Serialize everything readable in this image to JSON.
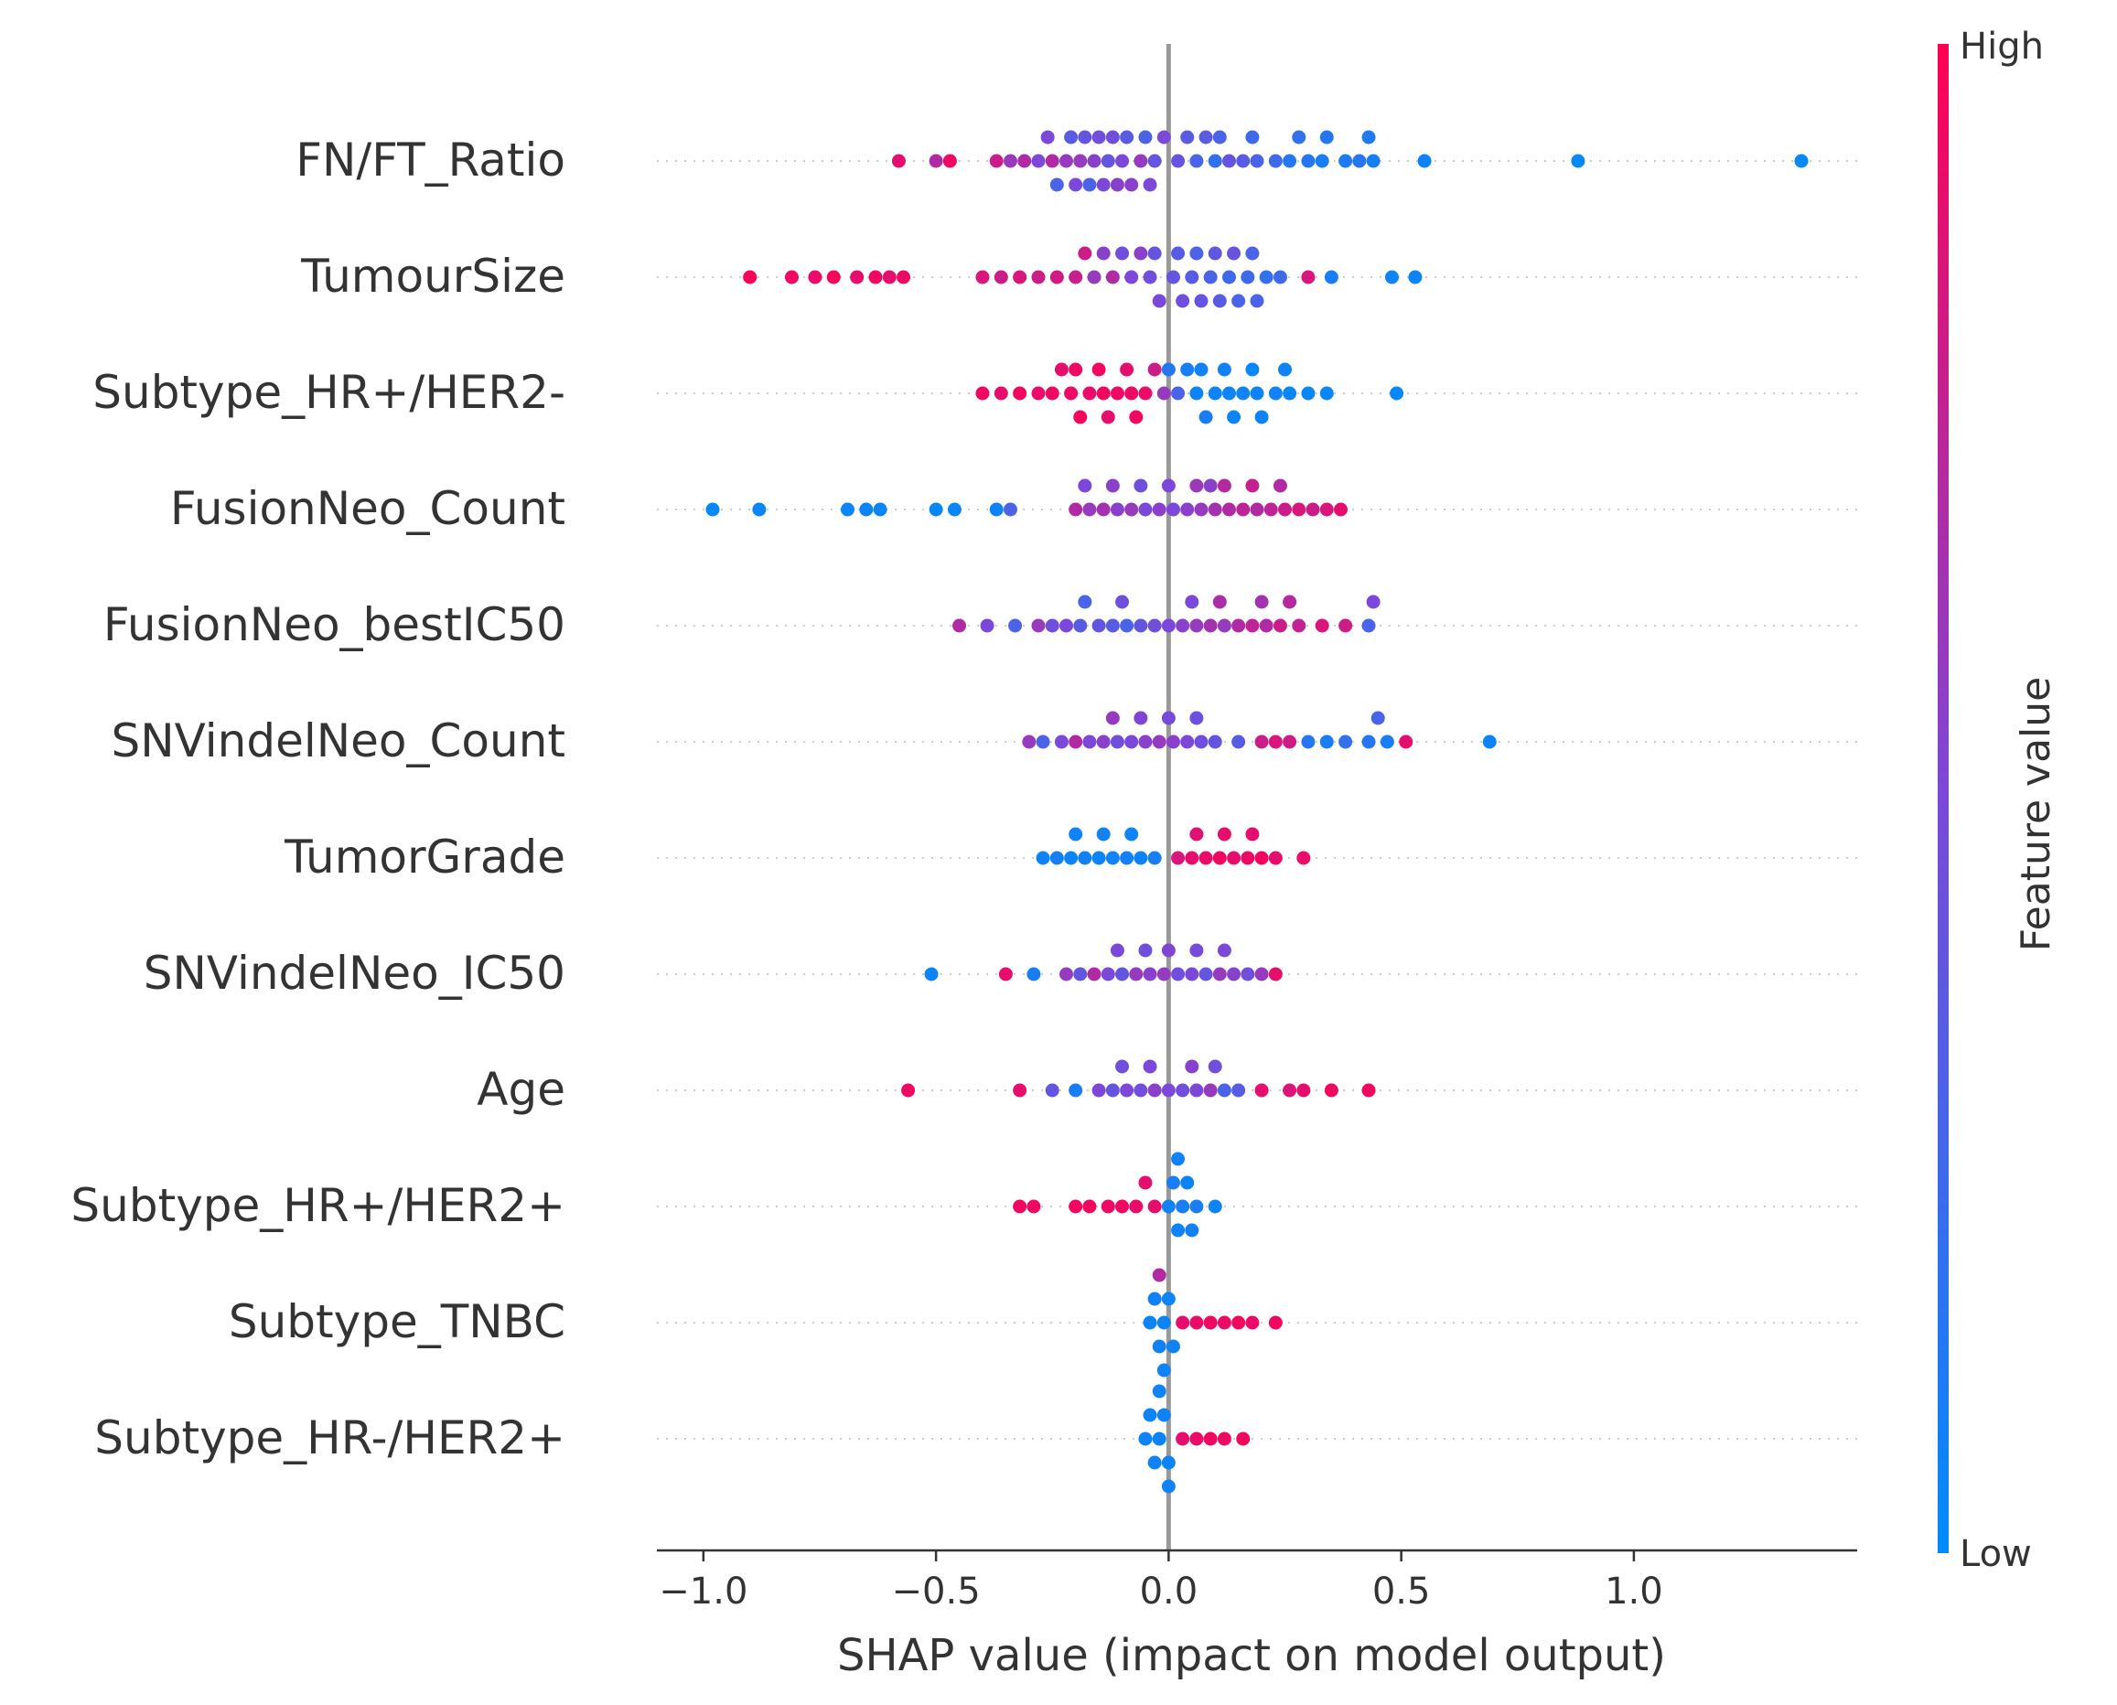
{
  "chart_data": {
    "type": "scatter",
    "subtype": "shap-beeswarm",
    "title": "",
    "xlabel": "SHAP value (impact on model output)",
    "ylabel": "",
    "xlim": [
      -1.1,
      1.48
    ],
    "xticks": [
      -1.0,
      -0.5,
      0.0,
      0.5,
      1.0
    ],
    "xtick_labels": [
      "−1.0",
      "−0.5",
      "0.0",
      "0.5",
      "1.0"
    ],
    "grid": false,
    "zero_line": true,
    "features": [
      "FN/FT_Ratio",
      "TumourSize",
      "Subtype_HR+/HER2-",
      "FusionNeo_Count",
      "FusionNeo_bestIC50",
      "SNVindelNeo_Count",
      "TumorGrade",
      "SNVindelNeo_IC50",
      "Age",
      "Subtype_HR+/HER2+",
      "Subtype_TNBC",
      "Subtype_HR-/HER2+"
    ],
    "points": [
      [
        [
          -0.58,
          0.9
        ],
        [
          -0.5,
          0.7
        ],
        [
          -0.47,
          0.95
        ],
        [
          -0.37,
          0.8
        ],
        [
          -0.34,
          0.6
        ],
        [
          -0.31,
          0.7
        ],
        [
          -0.28,
          0.5
        ],
        [
          -0.25,
          0.7
        ],
        [
          -0.22,
          0.6
        ],
        [
          -0.2,
          0.5
        ],
        [
          -0.18,
          0.4
        ],
        [
          -0.16,
          0.55
        ],
        [
          -0.14,
          0.5
        ],
        [
          -0.12,
          0.45
        ],
        [
          -0.1,
          0.5
        ],
        [
          -0.08,
          0.55
        ],
        [
          -0.06,
          0.6
        ],
        [
          -0.04,
          0.5
        ],
        [
          -0.24,
          0.3
        ],
        [
          -0.21,
          0.35
        ],
        [
          -0.17,
          0.3
        ],
        [
          -0.13,
          0.4
        ],
        [
          -0.09,
          0.35
        ],
        [
          -0.05,
          0.3
        ],
        [
          -0.03,
          0.4
        ],
        [
          -0.01,
          0.5
        ],
        [
          0.02,
          0.4
        ],
        [
          0.04,
          0.35
        ],
        [
          0.06,
          0.3
        ],
        [
          0.08,
          0.35
        ],
        [
          0.11,
          0.3
        ],
        [
          0.13,
          0.4
        ],
        [
          0.16,
          0.35
        ],
        [
          0.19,
          0.3
        ],
        [
          0.23,
          0.25
        ],
        [
          0.28,
          0.2
        ],
        [
          0.3,
          0.15
        ],
        [
          0.34,
          0.15
        ],
        [
          0.38,
          0.12
        ],
        [
          0.41,
          0.15
        ],
        [
          0.44,
          0.1
        ],
        [
          0.55,
          0.05
        ],
        [
          0.88,
          0.03
        ],
        [
          1.36,
          0.02
        ],
        [
          -0.26,
          0.5
        ],
        [
          -0.19,
          0.6
        ],
        [
          -0.15,
          0.45
        ],
        [
          -0.11,
          0.55
        ],
        [
          0.1,
          0.2
        ],
        [
          0.18,
          0.25
        ],
        [
          0.26,
          0.15
        ],
        [
          0.33,
          0.1
        ],
        [
          0.43,
          0.12
        ]
      ],
      [
        [
          -0.9,
          0.98
        ],
        [
          -0.81,
          0.95
        ],
        [
          -0.76,
          0.92
        ],
        [
          -0.72,
          0.97
        ],
        [
          -0.67,
          0.9
        ],
        [
          -0.63,
          0.95
        ],
        [
          -0.6,
          0.9
        ],
        [
          -0.57,
          0.93
        ],
        [
          -0.4,
          0.85
        ],
        [
          -0.36,
          0.8
        ],
        [
          -0.32,
          0.85
        ],
        [
          -0.28,
          0.8
        ],
        [
          -0.24,
          0.82
        ],
        [
          -0.2,
          0.78
        ],
        [
          -0.18,
          0.8
        ],
        [
          -0.16,
          0.6
        ],
        [
          -0.12,
          0.7
        ],
        [
          -0.08,
          0.5
        ],
        [
          -0.06,
          0.55
        ],
        [
          -0.04,
          0.45
        ],
        [
          -0.02,
          0.5
        ],
        [
          0.01,
          0.4
        ],
        [
          0.03,
          0.45
        ],
        [
          0.05,
          0.35
        ],
        [
          0.07,
          0.4
        ],
        [
          0.09,
          0.3
        ],
        [
          0.11,
          0.35
        ],
        [
          0.13,
          0.25
        ],
        [
          0.15,
          0.3
        ],
        [
          0.17,
          0.25
        ],
        [
          0.19,
          0.3
        ],
        [
          0.21,
          0.2
        ],
        [
          0.24,
          0.25
        ],
        [
          0.3,
          0.85
        ],
        [
          0.35,
          0.1
        ],
        [
          0.48,
          0.05
        ],
        [
          0.53,
          0.05
        ],
        [
          -0.1,
          0.45
        ],
        [
          -0.03,
          0.4
        ],
        [
          0.02,
          0.35
        ],
        [
          0.06,
          0.3
        ],
        [
          0.1,
          0.38
        ],
        [
          0.14,
          0.42
        ],
        [
          0.18,
          0.3
        ],
        [
          -0.14,
          0.55
        ]
      ],
      [
        [
          -0.4,
          0.95
        ],
        [
          -0.36,
          0.9
        ],
        [
          -0.32,
          0.95
        ],
        [
          -0.28,
          0.92
        ],
        [
          -0.25,
          0.95
        ],
        [
          -0.23,
          0.9
        ],
        [
          -0.21,
          0.94
        ],
        [
          -0.19,
          0.96
        ],
        [
          -0.17,
          0.92
        ],
        [
          -0.15,
          0.95
        ],
        [
          -0.13,
          0.9
        ],
        [
          -0.11,
          0.94
        ],
        [
          -0.09,
          0.9
        ],
        [
          -0.07,
          0.95
        ],
        [
          -0.05,
          0.92
        ],
        [
          -0.03,
          0.8
        ],
        [
          -0.01,
          0.6
        ],
        [
          0.02,
          0.3
        ],
        [
          0.04,
          0.1
        ],
        [
          0.06,
          0.05
        ],
        [
          0.08,
          0.1
        ],
        [
          0.1,
          0.05
        ],
        [
          0.12,
          0.08
        ],
        [
          0.14,
          0.05
        ],
        [
          0.16,
          0.06
        ],
        [
          0.18,
          0.04
        ],
        [
          0.2,
          0.05
        ],
        [
          0.23,
          0.06
        ],
        [
          0.26,
          0.04
        ],
        [
          0.3,
          0.03
        ],
        [
          0.34,
          0.03
        ],
        [
          0.49,
          0.02
        ],
        [
          -0.2,
          0.93
        ],
        [
          -0.14,
          0.95
        ],
        [
          -0.08,
          0.93
        ],
        [
          0.0,
          0.15
        ],
        [
          0.07,
          0.08
        ],
        [
          0.13,
          0.06
        ],
        [
          0.19,
          0.05
        ],
        [
          0.25,
          0.05
        ]
      ],
      [
        [
          -0.98,
          0.02
        ],
        [
          -0.88,
          0.04
        ],
        [
          -0.69,
          0.03
        ],
        [
          -0.65,
          0.05
        ],
        [
          -0.62,
          0.04
        ],
        [
          -0.5,
          0.03
        ],
        [
          -0.46,
          0.04
        ],
        [
          -0.37,
          0.05
        ],
        [
          -0.34,
          0.3
        ],
        [
          -0.2,
          0.7
        ],
        [
          -0.17,
          0.6
        ],
        [
          -0.14,
          0.65
        ],
        [
          -0.11,
          0.55
        ],
        [
          -0.08,
          0.6
        ],
        [
          -0.05,
          0.5
        ],
        [
          -0.02,
          0.55
        ],
        [
          0.01,
          0.5
        ],
        [
          0.04,
          0.55
        ],
        [
          0.07,
          0.6
        ],
        [
          0.1,
          0.65
        ],
        [
          0.13,
          0.7
        ],
        [
          0.16,
          0.75
        ],
        [
          0.19,
          0.7
        ],
        [
          0.22,
          0.75
        ],
        [
          0.25,
          0.8
        ],
        [
          0.28,
          0.85
        ],
        [
          0.31,
          0.8
        ],
        [
          0.34,
          0.85
        ],
        [
          0.37,
          0.9
        ],
        [
          -0.12,
          0.55
        ],
        [
          -0.06,
          0.45
        ],
        [
          0.0,
          0.5
        ],
        [
          0.06,
          0.62
        ],
        [
          0.12,
          0.72
        ],
        [
          0.18,
          0.78
        ],
        [
          0.24,
          0.7
        ],
        [
          -0.18,
          0.5
        ],
        [
          0.09,
          0.55
        ]
      ],
      [
        [
          -0.45,
          0.7
        ],
        [
          -0.39,
          0.5
        ],
        [
          -0.33,
          0.3
        ],
        [
          -0.28,
          0.6
        ],
        [
          -0.25,
          0.45
        ],
        [
          -0.22,
          0.5
        ],
        [
          -0.18,
          0.3
        ],
        [
          -0.15,
          0.4
        ],
        [
          -0.12,
          0.35
        ],
        [
          -0.09,
          0.3
        ],
        [
          -0.06,
          0.4
        ],
        [
          -0.03,
          0.45
        ],
        [
          0.0,
          0.5
        ],
        [
          0.03,
          0.55
        ],
        [
          0.06,
          0.6
        ],
        [
          0.09,
          0.65
        ],
        [
          0.12,
          0.6
        ],
        [
          0.15,
          0.7
        ],
        [
          0.18,
          0.75
        ],
        [
          0.21,
          0.7
        ],
        [
          0.24,
          0.8
        ],
        [
          0.28,
          0.75
        ],
        [
          0.33,
          0.85
        ],
        [
          0.38,
          0.8
        ],
        [
          0.43,
          0.3
        ],
        [
          0.44,
          0.5
        ],
        [
          -0.19,
          0.35
        ],
        [
          -0.1,
          0.45
        ],
        [
          0.05,
          0.5
        ],
        [
          0.11,
          0.68
        ],
        [
          0.2,
          0.65
        ],
        [
          0.26,
          0.72
        ]
      ],
      [
        [
          -0.3,
          0.6
        ],
        [
          -0.27,
          0.3
        ],
        [
          -0.23,
          0.5
        ],
        [
          -0.2,
          0.7
        ],
        [
          -0.17,
          0.5
        ],
        [
          -0.14,
          0.55
        ],
        [
          -0.11,
          0.45
        ],
        [
          -0.08,
          0.5
        ],
        [
          -0.05,
          0.55
        ],
        [
          -0.02,
          0.6
        ],
        [
          0.01,
          0.55
        ],
        [
          0.04,
          0.5
        ],
        [
          0.07,
          0.45
        ],
        [
          0.1,
          0.4
        ],
        [
          0.15,
          0.35
        ],
        [
          0.2,
          0.8
        ],
        [
          0.23,
          0.85
        ],
        [
          0.3,
          0.15
        ],
        [
          0.34,
          0.1
        ],
        [
          0.38,
          0.2
        ],
        [
          0.43,
          0.15
        ],
        [
          0.47,
          0.1
        ],
        [
          0.51,
          0.9
        ],
        [
          0.69,
          0.05
        ],
        [
          -0.12,
          0.6
        ],
        [
          -0.06,
          0.52
        ],
        [
          0.0,
          0.48
        ],
        [
          0.06,
          0.44
        ],
        [
          0.26,
          0.8
        ],
        [
          0.45,
          0.3
        ]
      ],
      [
        [
          -0.27,
          0.05
        ],
        [
          -0.24,
          0.08
        ],
        [
          -0.21,
          0.05
        ],
        [
          -0.18,
          0.07
        ],
        [
          -0.15,
          0.05
        ],
        [
          -0.12,
          0.06
        ],
        [
          -0.09,
          0.08
        ],
        [
          -0.06,
          0.05
        ],
        [
          -0.03,
          0.1
        ],
        [
          0.02,
          0.85
        ],
        [
          0.05,
          0.9
        ],
        [
          0.08,
          0.92
        ],
        [
          0.11,
          0.95
        ],
        [
          0.14,
          0.9
        ],
        [
          0.17,
          0.93
        ],
        [
          0.2,
          0.95
        ],
        [
          0.23,
          0.9
        ],
        [
          0.29,
          0.92
        ],
        [
          -0.2,
          0.06
        ],
        [
          -0.14,
          0.07
        ],
        [
          -0.08,
          0.06
        ],
        [
          0.06,
          0.88
        ],
        [
          0.12,
          0.91
        ],
        [
          0.18,
          0.9
        ]
      ],
      [
        [
          -0.51,
          0.05
        ],
        [
          -0.35,
          0.9
        ],
        [
          -0.29,
          0.1
        ],
        [
          -0.22,
          0.6
        ],
        [
          -0.19,
          0.4
        ],
        [
          -0.16,
          0.7
        ],
        [
          -0.13,
          0.5
        ],
        [
          -0.1,
          0.4
        ],
        [
          -0.07,
          0.6
        ],
        [
          -0.04,
          0.55
        ],
        [
          -0.01,
          0.6
        ],
        [
          0.02,
          0.45
        ],
        [
          0.05,
          0.5
        ],
        [
          0.08,
          0.4
        ],
        [
          0.11,
          0.6
        ],
        [
          0.14,
          0.55
        ],
        [
          0.17,
          0.45
        ],
        [
          0.2,
          0.6
        ],
        [
          0.23,
          0.9
        ],
        [
          -0.11,
          0.5
        ],
        [
          -0.05,
          0.45
        ],
        [
          0.0,
          0.52
        ],
        [
          0.06,
          0.48
        ],
        [
          0.12,
          0.5
        ]
      ],
      [
        [
          -0.56,
          0.95
        ],
        [
          -0.32,
          0.9
        ],
        [
          -0.25,
          0.4
        ],
        [
          -0.2,
          0.1
        ],
        [
          -0.15,
          0.5
        ],
        [
          -0.12,
          0.4
        ],
        [
          -0.09,
          0.5
        ],
        [
          -0.06,
          0.45
        ],
        [
          -0.03,
          0.55
        ],
        [
          0.0,
          0.5
        ],
        [
          0.03,
          0.45
        ],
        [
          0.06,
          0.5
        ],
        [
          0.09,
          0.6
        ],
        [
          0.12,
          0.3
        ],
        [
          0.15,
          0.35
        ],
        [
          0.2,
          0.9
        ],
        [
          0.26,
          0.85
        ],
        [
          0.29,
          0.9
        ],
        [
          0.35,
          0.95
        ],
        [
          0.43,
          0.95
        ],
        [
          -0.1,
          0.45
        ],
        [
          -0.04,
          0.5
        ],
        [
          0.05,
          0.55
        ],
        [
          0.1,
          0.45
        ]
      ],
      [
        [
          -0.32,
          0.95
        ],
        [
          -0.29,
          0.95
        ],
        [
          -0.2,
          0.95
        ],
        [
          -0.17,
          0.95
        ],
        [
          -0.1,
          0.95
        ],
        [
          -0.07,
          0.92
        ],
        [
          -0.03,
          0.9
        ],
        [
          0.01,
          0.1
        ],
        [
          0.02,
          0.05
        ],
        [
          0.03,
          0.1
        ],
        [
          0.04,
          0.05
        ],
        [
          0.05,
          0.08
        ],
        [
          0.06,
          0.1
        ],
        [
          0.1,
          0.05
        ],
        [
          -0.13,
          0.93
        ],
        [
          -0.05,
          0.9
        ],
        [
          0.0,
          0.07
        ],
        [
          0.02,
          0.06
        ]
      ],
      [
        [
          -0.04,
          0.05
        ],
        [
          -0.02,
          0.08
        ],
        [
          -0.01,
          0.05
        ],
        [
          0.0,
          0.06
        ],
        [
          -0.03,
          0.07
        ],
        [
          -0.02,
          0.7
        ],
        [
          0.03,
          0.9
        ],
        [
          0.06,
          0.92
        ],
        [
          0.09,
          0.95
        ],
        [
          0.12,
          0.93
        ],
        [
          0.15,
          0.95
        ],
        [
          0.18,
          0.92
        ],
        [
          0.23,
          0.95
        ],
        [
          -0.01,
          0.06
        ],
        [
          0.01,
          0.07
        ]
      ],
      [
        [
          -0.05,
          0.05
        ],
        [
          -0.03,
          0.06
        ],
        [
          -0.02,
          0.05
        ],
        [
          -0.01,
          0.07
        ],
        [
          0.0,
          0.05
        ],
        [
          -0.04,
          0.06
        ],
        [
          0.03,
          0.9
        ],
        [
          0.06,
          0.92
        ],
        [
          0.09,
          0.95
        ],
        [
          0.12,
          0.93
        ],
        [
          0.16,
          0.95
        ],
        [
          -0.02,
          0.07
        ],
        [
          0.0,
          0.06
        ]
      ]
    ],
    "colorbar": {
      "label": "Feature value",
      "high_label": "High",
      "low_label": "Low",
      "high_color": "#ff0052",
      "mid_color": "#7c48d9",
      "low_color": "#008bfb"
    },
    "colors": {
      "zero_line": "#999999",
      "guide_dots": "#cccccc",
      "axis": "#333333"
    }
  }
}
